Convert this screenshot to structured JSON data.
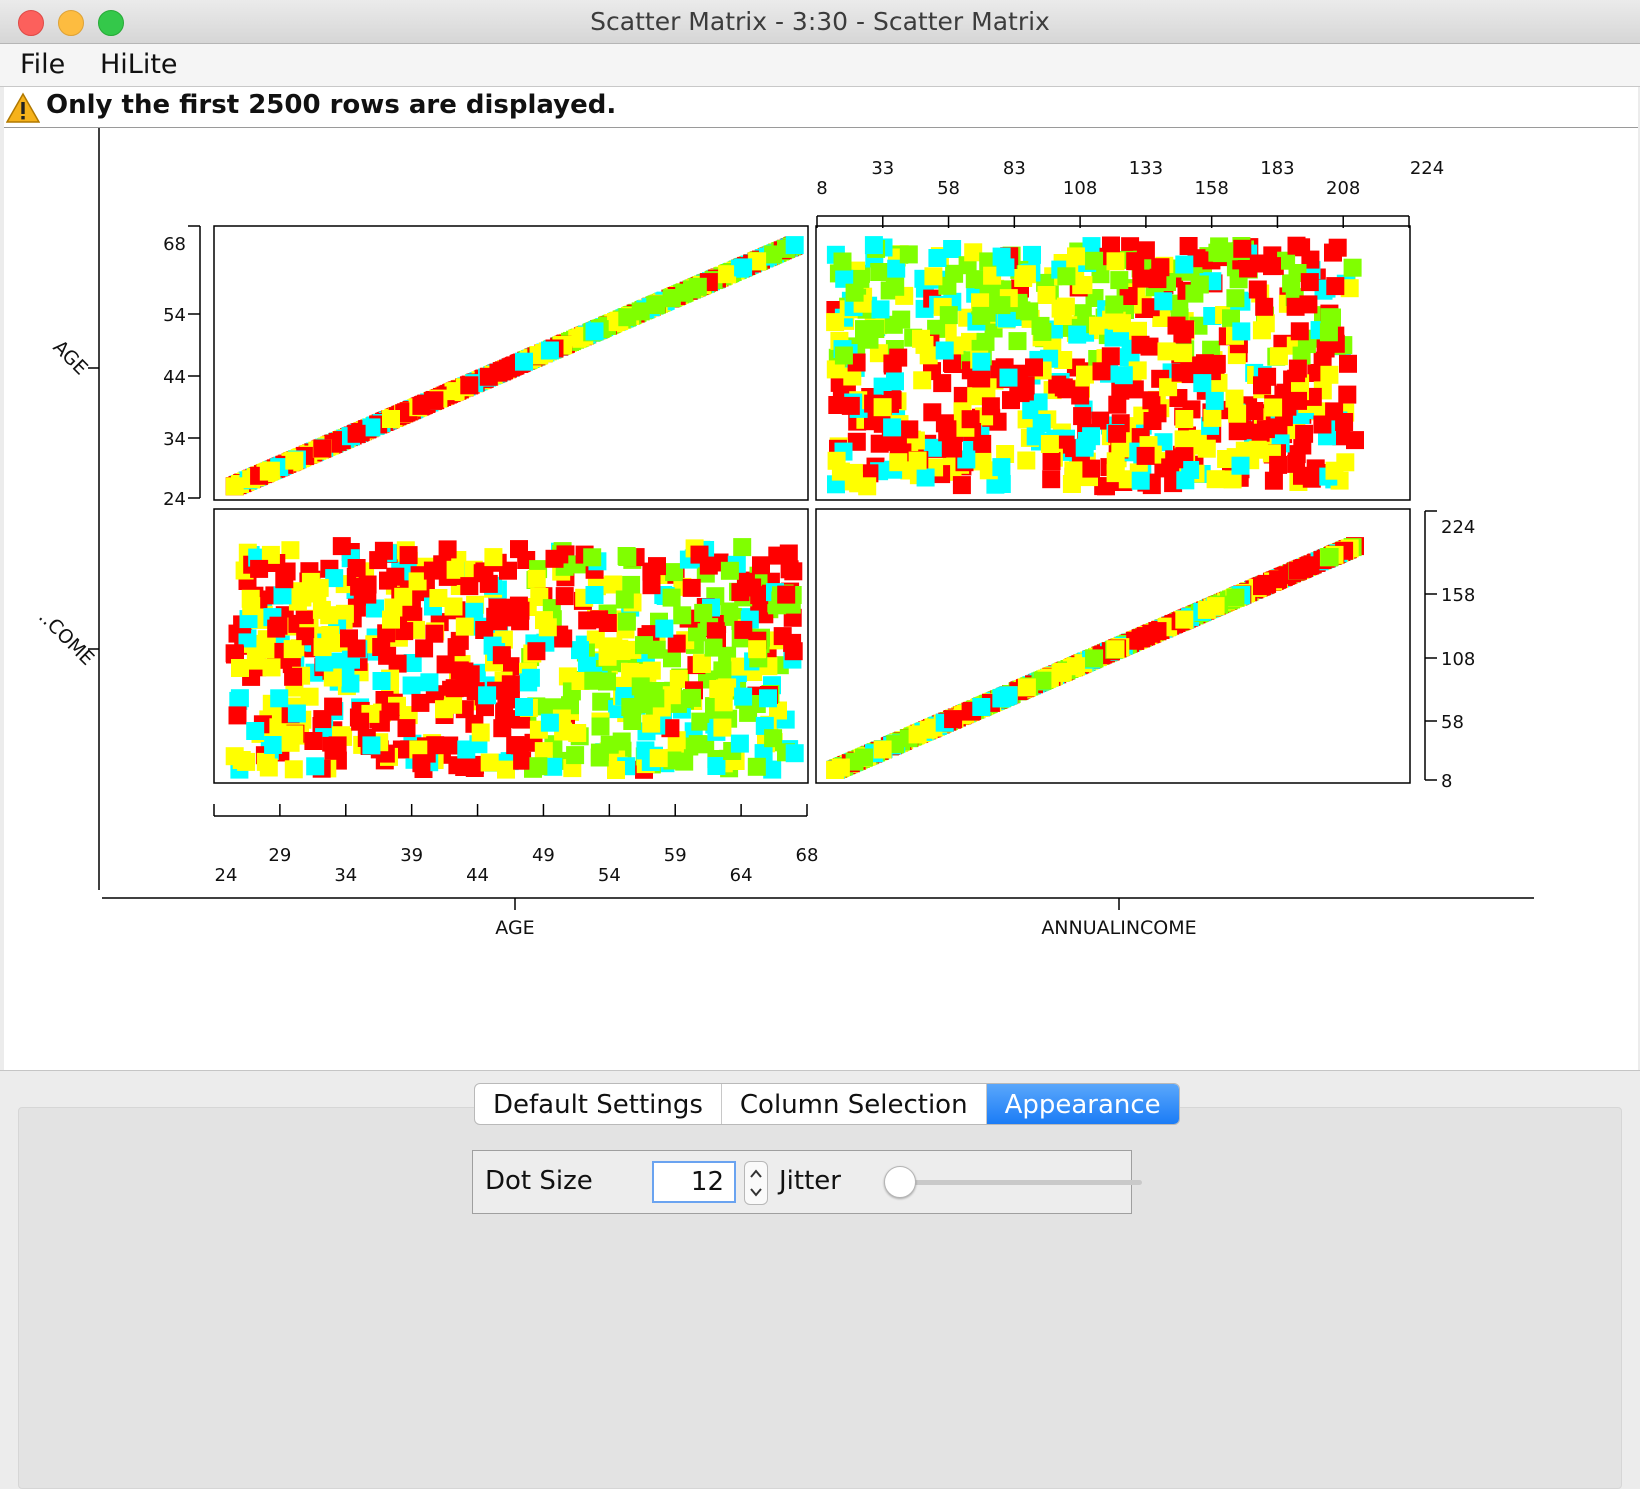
{
  "window": {
    "title": "Scatter Matrix - 3:30 - Scatter Matrix"
  },
  "menu": {
    "items": [
      "File",
      "HiLite"
    ]
  },
  "warning": {
    "text": "Only the first 2500 rows are displayed."
  },
  "tabs": [
    {
      "label": "Default Settings",
      "active": false
    },
    {
      "label": "Column Selection",
      "active": false
    },
    {
      "label": "Appearance",
      "active": true
    }
  ],
  "appearance": {
    "dot_size_label": "Dot Size",
    "dot_size_value": "12",
    "jitter_label": "Jitter",
    "jitter_value": 0
  },
  "chart_data": {
    "type": "scatter",
    "variables": [
      {
        "name": "AGE",
        "short_label": "AGE",
        "range": [
          24,
          68
        ],
        "ticks_upper": [
          "29",
          "39",
          "49",
          "59",
          "68"
        ],
        "ticks_lower": [
          "24",
          "34",
          "44",
          "54",
          "64"
        ]
      },
      {
        "name": "ANNUALINCOME",
        "short_label": "..COME",
        "range": [
          8,
          224
        ],
        "ticks_upper": [
          "33",
          "83",
          "133",
          "183",
          "224"
        ],
        "ticks_lower": [
          "8",
          "58",
          "108",
          "158",
          "208"
        ]
      }
    ],
    "left_age_ticks": [
      "68",
      "54",
      "44",
      "34",
      "24"
    ],
    "right_income_ticks": [
      "224",
      "158",
      "108",
      "58",
      "8"
    ],
    "color_classes": [
      {
        "color": "#ff0000"
      },
      {
        "color": "#00ffff"
      },
      {
        "color": "#ffff00"
      },
      {
        "color": "#80ff00"
      }
    ],
    "point_count_shown": 2500,
    "dot_size": 12
  }
}
